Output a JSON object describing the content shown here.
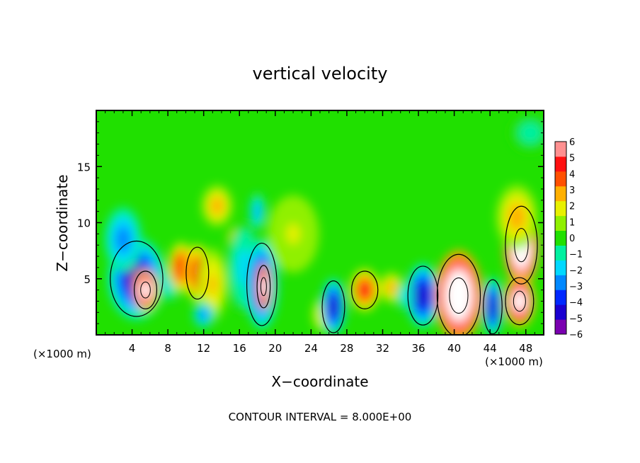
{
  "chart_data": {
    "type": "heatmap",
    "title": "vertical velocity",
    "xlabel": "X−coordinate",
    "ylabel": "Z−coordinate",
    "x_unit_left": "(×1000 m)",
    "x_unit_right": "(×1000 m)",
    "footer": "CONTOUR INTERVAL = 8.000E+00",
    "xlim": [
      0,
      50
    ],
    "ylim": [
      0,
      20
    ],
    "x_ticks": [
      4,
      8,
      12,
      16,
      20,
      24,
      28,
      32,
      36,
      40,
      44,
      48
    ],
    "y_ticks": [
      5,
      10,
      15
    ],
    "colorbar": {
      "min": -6,
      "max": 6,
      "ticks": [
        6,
        5,
        4,
        3,
        2,
        1,
        0,
        -1,
        -2,
        -3,
        -4,
        -5,
        -6
      ],
      "colors": [
        "#7a00b0",
        "#1a00d0",
        "#0028ff",
        "#0088ff",
        "#00d8ff",
        "#00f0a0",
        "#20e000",
        "#90f000",
        "#e8f000",
        "#ffb000",
        "#ff5000",
        "#ff1010",
        "#ff9090"
      ]
    },
    "background_value": 0.3,
    "features": [
      {
        "x": 4.5,
        "z": 5.0,
        "value": -5.5,
        "rx": 2.8,
        "rz": 3.2
      },
      {
        "x": 5.5,
        "z": 4.0,
        "value": 8,
        "rx": 1.2,
        "rz": 1.6
      },
      {
        "x": 3.0,
        "z": 8.5,
        "value": -3,
        "rx": 1.8,
        "rz": 2.5
      },
      {
        "x": 8.2,
        "z": 4.6,
        "value": -2,
        "rx": 1.0,
        "rz": 1.4
      },
      {
        "x": 9.5,
        "z": 6.0,
        "value": 4.5,
        "rx": 1.3,
        "rz": 2.0
      },
      {
        "x": 11.3,
        "z": 5.5,
        "value": 5,
        "rx": 1.2,
        "rz": 2.2
      },
      {
        "x": 13.0,
        "z": 4.5,
        "value": 2.5,
        "rx": 1.4,
        "rz": 2.8
      },
      {
        "x": 12.0,
        "z": 1.8,
        "value": -3,
        "rx": 1.0,
        "rz": 1.0
      },
      {
        "x": 15.5,
        "z": 8.5,
        "value": 4,
        "rx": 0.7,
        "rz": 1.0
      },
      {
        "x": 16.5,
        "z": 6.0,
        "value": -2,
        "rx": 1.6,
        "rz": 3.5
      },
      {
        "x": 18.5,
        "z": 4.5,
        "value": -5,
        "rx": 1.6,
        "rz": 3.5
      },
      {
        "x": 18.7,
        "z": 4.3,
        "value": 8,
        "rx": 0.7,
        "rz": 1.8
      },
      {
        "x": 13.5,
        "z": 11.5,
        "value": 3,
        "rx": 1.5,
        "rz": 1.6
      },
      {
        "x": 18.0,
        "z": 11.0,
        "value": -2.5,
        "rx": 0.8,
        "rz": 1.5
      },
      {
        "x": 25.5,
        "z": 1.8,
        "value": 2.5,
        "rx": 1.2,
        "rz": 1.4
      },
      {
        "x": 26.5,
        "z": 2.5,
        "value": -5,
        "rx": 1.2,
        "rz": 2.2
      },
      {
        "x": 30.0,
        "z": 4.0,
        "value": 5,
        "rx": 1.4,
        "rz": 1.6
      },
      {
        "x": 33.0,
        "z": 4.2,
        "value": 3,
        "rx": 1.2,
        "rz": 1.2
      },
      {
        "x": 36.5,
        "z": 3.5,
        "value": -5,
        "rx": 1.6,
        "rz": 2.5
      },
      {
        "x": 34.5,
        "z": 3.5,
        "value": -2,
        "rx": 0.8,
        "rz": 1.2
      },
      {
        "x": 40.5,
        "z": 3.5,
        "value": 9,
        "rx": 2.3,
        "rz": 3.5
      },
      {
        "x": 44.3,
        "z": 2.5,
        "value": -5,
        "rx": 1.0,
        "rz": 2.3
      },
      {
        "x": 47.5,
        "z": 8.0,
        "value": 9,
        "rx": 1.7,
        "rz": 3.3
      },
      {
        "x": 47.3,
        "z": 3.0,
        "value": 8,
        "rx": 1.5,
        "rz": 2.0
      },
      {
        "x": 47.0,
        "z": 10.5,
        "value": 3,
        "rx": 2.0,
        "rz": 2.5
      },
      {
        "x": 22.0,
        "z": 9.0,
        "value": 1.5,
        "rx": 2.5,
        "rz": 3.0
      },
      {
        "x": 48.5,
        "z": 18.0,
        "value": -1,
        "rx": 2.0,
        "rz": 1.5
      }
    ]
  }
}
